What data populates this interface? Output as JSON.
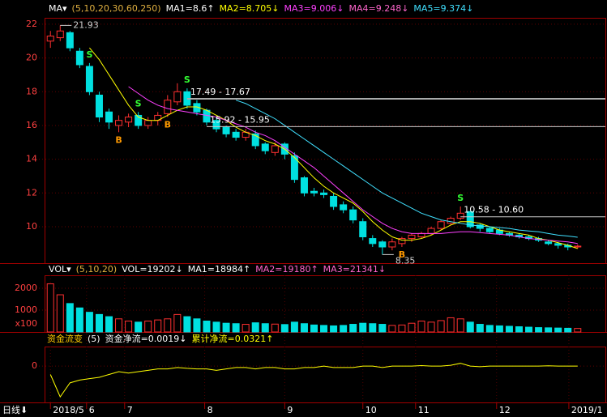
{
  "chart_data": {
    "type": "candlestick",
    "header": [
      {
        "text": "MA▾",
        "color": "#ffffff"
      },
      {
        "text": "(5,10,20,30,60,250)",
        "color": "#e0b040"
      },
      {
        "text": "MA1=8.6↑",
        "color": "#ffffff"
      },
      {
        "text": "MA2=8.705↓",
        "color": "#ffff00"
      },
      {
        "text": "MA3=9.006↓",
        "color": "#ff40ff"
      },
      {
        "text": "MA4=9.248↓",
        "color": "#ff66cc"
      },
      {
        "text": "MA5=9.374↓",
        "color": "#40e0ff"
      }
    ],
    "xlim": [
      -0.6,
      54.6
    ],
    "xticks": [
      {
        "value": 0,
        "label": "2018/5"
      },
      {
        "value": 3.7,
        "label": "6"
      },
      {
        "value": 7.6,
        "label": "7"
      },
      {
        "value": 15.8,
        "label": "8"
      },
      {
        "value": 24,
        "label": "9"
      },
      {
        "value": 32,
        "label": "10"
      },
      {
        "value": 37.4,
        "label": "11"
      },
      {
        "value": 45.7,
        "label": "12"
      },
      {
        "value": 53.1,
        "label": "2019/1"
      }
    ],
    "period_label": "日线⬇",
    "ylim": [
      7.84,
      22.38
    ],
    "yticks": [
      10,
      12,
      14,
      16,
      18,
      20,
      22
    ],
    "up_color": "#ff3030",
    "down_color": "#00e0e0",
    "open": [
      21.0,
      21.2,
      21.5,
      20.4,
      19.5,
      17.8,
      16.8,
      16.0,
      16.2,
      16.6,
      16.0,
      16.3,
      16.7,
      17.4,
      18.0,
      17.3,
      16.9,
      16.3,
      15.9,
      15.6,
      15.3,
      15.5,
      14.9,
      14.4,
      14.9,
      14.2,
      12.9,
      12.1,
      12.0,
      11.8,
      11.3,
      11.0,
      10.3,
      9.3,
      9.1,
      8.8,
      9.0,
      9.3,
      9.4,
      9.6,
      9.9,
      10.2,
      10.5,
      10.9,
      10.1,
      9.9,
      9.8,
      9.6,
      9.5,
      9.4,
      9.3,
      9.1,
      9.0,
      8.9,
      8.8
    ],
    "high": [
      21.6,
      21.93,
      21.6,
      20.6,
      19.7,
      18.0,
      17.0,
      16.6,
      16.7,
      16.8,
      16.5,
      16.8,
      17.8,
      18.5,
      18.2,
      17.5,
      17.0,
      16.5,
      16.0,
      15.8,
      15.8,
      15.7,
      15.0,
      15.0,
      15.0,
      14.4,
      13.0,
      12.3,
      12.2,
      12.0,
      11.5,
      11.2,
      10.5,
      9.5,
      9.2,
      9.3,
      9.4,
      9.6,
      9.7,
      10.0,
      10.4,
      10.6,
      11.2,
      10.9,
      10.2,
      10.0,
      9.9,
      9.7,
      9.6,
      9.5,
      9.4,
      9.2,
      9.1,
      9.0,
      8.95
    ],
    "low": [
      20.6,
      21.0,
      20.4,
      19.4,
      17.8,
      16.2,
      15.8,
      15.6,
      15.9,
      15.8,
      15.8,
      16.0,
      16.5,
      17.2,
      17.0,
      16.6,
      16.0,
      15.6,
      15.3,
      15.1,
      15.1,
      14.6,
      14.3,
      14.2,
      14.0,
      12.6,
      11.8,
      11.8,
      11.7,
      11.0,
      10.8,
      10.2,
      9.2,
      8.8,
      8.35,
      8.6,
      8.8,
      9.1,
      9.3,
      9.5,
      9.8,
      10.1,
      10.4,
      9.9,
      9.7,
      9.6,
      9.5,
      9.4,
      9.3,
      9.2,
      9.1,
      8.9,
      8.7,
      8.6,
      8.7
    ],
    "close": [
      21.3,
      21.6,
      20.6,
      19.6,
      18.0,
      16.5,
      16.2,
      16.3,
      16.5,
      16.0,
      16.3,
      16.6,
      17.5,
      18.0,
      17.2,
      16.8,
      16.2,
      15.8,
      15.5,
      15.3,
      15.6,
      14.8,
      14.5,
      14.8,
      14.3,
      12.8,
      12.0,
      12.0,
      11.9,
      11.2,
      11.0,
      10.4,
      9.4,
      9.0,
      8.8,
      9.1,
      9.3,
      9.5,
      9.6,
      9.9,
      10.3,
      10.5,
      10.8,
      10.0,
      9.9,
      9.7,
      9.6,
      9.5,
      9.4,
      9.3,
      9.2,
      9.0,
      8.9,
      8.8,
      8.85
    ],
    "series": [
      {
        "name": "MA2",
        "color": "#ffff00",
        "values": [
          null,
          null,
          null,
          null,
          20.6,
          19.9,
          19.0,
          18.1,
          17.2,
          16.5,
          16.3,
          16.3,
          16.6,
          16.9,
          17.1,
          17.1,
          16.9,
          16.6,
          16.3,
          15.9,
          15.6,
          15.4,
          15.1,
          14.9,
          14.6,
          14.1,
          13.5,
          12.9,
          12.4,
          12.0,
          11.7,
          11.4,
          10.9,
          10.3,
          9.8,
          9.4,
          9.2,
          9.2,
          9.3,
          9.5,
          9.8,
          10.1,
          10.3,
          10.3,
          10.2,
          10.0,
          9.8,
          9.7,
          9.6,
          9.5,
          9.3,
          9.2,
          9.05,
          8.9,
          8.705
        ]
      },
      {
        "name": "MA3",
        "color": "#ff40ff",
        "values": [
          null,
          null,
          null,
          null,
          null,
          null,
          null,
          null,
          18.3,
          17.9,
          17.5,
          17.2,
          17.0,
          16.9,
          16.8,
          16.7,
          16.6,
          16.5,
          16.3,
          16.1,
          15.9,
          15.6,
          15.4,
          15.1,
          14.7,
          14.3,
          13.9,
          13.5,
          13.0,
          12.5,
          12.0,
          11.5,
          11.0,
          10.6,
          10.2,
          9.9,
          9.7,
          9.6,
          9.6,
          9.6,
          9.6,
          9.65,
          9.7,
          9.7,
          9.65,
          9.6,
          9.55,
          9.5,
          9.4,
          9.3,
          9.25,
          9.2,
          9.15,
          9.1,
          9.006
        ]
      },
      {
        "name": "MA5",
        "color": "#40e0ff",
        "values": [
          null,
          null,
          null,
          null,
          null,
          null,
          null,
          null,
          null,
          null,
          null,
          null,
          null,
          null,
          null,
          null,
          null,
          null,
          null,
          17.5,
          17.3,
          17.0,
          16.7,
          16.4,
          16.0,
          15.6,
          15.2,
          14.8,
          14.4,
          14.0,
          13.6,
          13.2,
          12.8,
          12.4,
          12.0,
          11.7,
          11.4,
          11.1,
          10.8,
          10.6,
          10.4,
          10.3,
          10.2,
          10.1,
          10.05,
          10.0,
          9.95,
          9.9,
          9.8,
          9.75,
          9.7,
          9.6,
          9.5,
          9.45,
          9.374
        ]
      }
    ],
    "levels": [
      {
        "label": "17.49 - 17.67",
        "value": 17.58,
        "from": 14,
        "color": "#aaaaaa"
      },
      {
        "label": "15.92 - 15.95",
        "value": 15.93,
        "from": 16,
        "color": "#cccccc"
      },
      {
        "label": "10.58 - 10.60",
        "value": 10.59,
        "from": 42,
        "color": "#cccccc"
      }
    ],
    "annotations": [
      {
        "text": "21.93",
        "x": 1,
        "y": 21.93
      },
      {
        "text": "8.35",
        "x": 34,
        "y": 8.35
      }
    ],
    "signals": [
      {
        "label": "S",
        "x": 4
      },
      {
        "label": "B",
        "x": 7
      },
      {
        "label": "S",
        "x": 9
      },
      {
        "label": "B",
        "x": 12
      },
      {
        "label": "S",
        "x": 14
      },
      {
        "label": "B",
        "x": 36
      },
      {
        "label": "S",
        "x": 42
      }
    ],
    "signal_colors": {
      "S": "#33ff33",
      "B": "#ff9900"
    },
    "volume": {
      "header": [
        {
          "text": "VOL▾",
          "color": "#ffffff"
        },
        {
          "text": "(5,10,20)",
          "color": "#e0b040"
        },
        {
          "text": "VOL=19202↓",
          "color": "#ffffff"
        },
        {
          "text": "MA1=18984↑",
          "color": "#ffffff"
        },
        {
          "text": "MA2=19180↑",
          "color": "#ff66cc"
        },
        {
          "text": "MA3=21341↓",
          "color": "#ff66cc"
        }
      ],
      "unit_label": "x100",
      "ylim": [
        0,
        2590
      ],
      "yticks": [
        1000,
        2000
      ],
      "values": [
        2200,
        1700,
        1300,
        1100,
        900,
        800,
        700,
        600,
        500,
        450,
        500,
        550,
        600,
        800,
        700,
        600,
        500,
        450,
        400,
        380,
        350,
        420,
        380,
        360,
        340,
        450,
        380,
        320,
        300,
        280,
        300,
        350,
        400,
        380,
        350,
        300,
        320,
        400,
        500,
        450,
        520,
        650,
        600,
        450,
        350,
        300,
        280,
        260,
        240,
        220,
        200,
        190,
        180,
        170,
        160
      ]
    },
    "flow": {
      "header": [
        {
          "text": "资金流变",
          "color": "#ffcc00"
        },
        {
          "text": "(5)",
          "color": "#ffffff"
        },
        {
          "text": "资金净流=0.0019↓",
          "color": "#ffffff"
        },
        {
          "text": "累计净流=0.0321↑",
          "color": "#ffff00"
        }
      ],
      "ylim": [
        -1.3,
        0.7
      ],
      "yticks": [
        0
      ],
      "color": "#ffff00",
      "values": [
        -0.3,
        -1.1,
        -0.6,
        -0.5,
        -0.45,
        -0.4,
        -0.3,
        -0.2,
        -0.25,
        -0.2,
        -0.15,
        -0.1,
        -0.1,
        -0.05,
        -0.08,
        -0.1,
        -0.1,
        -0.15,
        -0.1,
        -0.05,
        -0.05,
        -0.1,
        -0.05,
        -0.05,
        -0.1,
        -0.1,
        -0.05,
        -0.05,
        0,
        -0.05,
        -0.05,
        -0.05,
        0,
        0,
        -0.05,
        0,
        0,
        0,
        0.02,
        0,
        0,
        0.03,
        0.1,
        0,
        -0.02,
        0,
        0,
        0,
        0,
        0,
        0,
        0.01,
        0,
        0,
        0.0019
      ]
    }
  }
}
